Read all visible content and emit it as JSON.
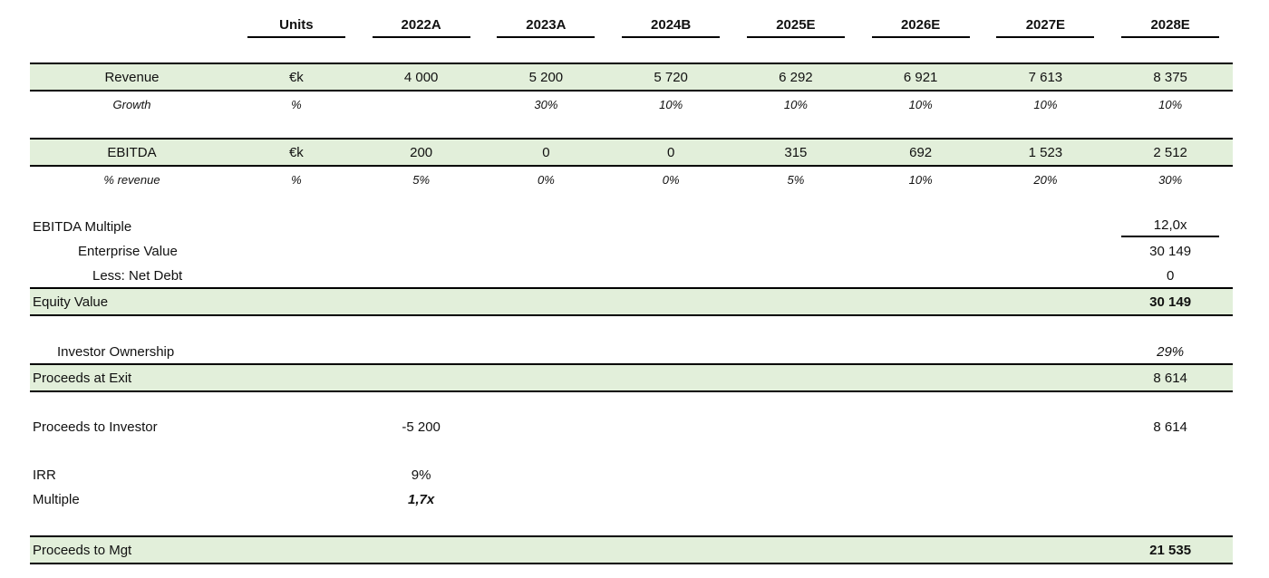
{
  "colors": {
    "band_green": "#e2efda",
    "border_black": "#000000",
    "text": "#111111"
  },
  "columns": {
    "units_header": "Units",
    "years": [
      "2022A",
      "2023A",
      "2024B",
      "2025E",
      "2026E",
      "2027E",
      "2028E"
    ]
  },
  "rows": {
    "revenue": {
      "label": "Revenue",
      "units": "€k",
      "values": [
        "4 000",
        "5 200",
        "5 720",
        "6 292",
        "6 921",
        "7 613",
        "8 375"
      ]
    },
    "growth": {
      "label": "Growth",
      "units": "%",
      "values": [
        "",
        "30%",
        "10%",
        "10%",
        "10%",
        "10%",
        "10%"
      ]
    },
    "ebitda": {
      "label": "EBITDA",
      "units": "€k",
      "values": [
        "200",
        "0",
        "0",
        "315",
        "692",
        "1 523",
        "2 512"
      ]
    },
    "ebitda_pct_revenue": {
      "label": "% revenue",
      "units": "%",
      "values": [
        "5%",
        "0%",
        "0%",
        "5%",
        "10%",
        "20%",
        "30%"
      ]
    },
    "ebitda_multiple": {
      "label": "EBITDA Multiple",
      "value_2028": "12,0x"
    },
    "enterprise_value": {
      "label": "Enterprise Value",
      "value_2028": "30 149"
    },
    "less_net_debt": {
      "label": "Less: Net Debt",
      "value_2028": "0"
    },
    "equity_value": {
      "label": "Equity Value",
      "value_2028": "30 149"
    },
    "investor_ownership": {
      "label": "Investor Ownership",
      "value_2028": "29%"
    },
    "proceeds_at_exit": {
      "label": "Proceeds at Exit",
      "value_2028": "8 614"
    },
    "proceeds_to_investor": {
      "label": "Proceeds to Investor",
      "value_2022": "-5 200",
      "value_2028": "8 614"
    },
    "irr": {
      "label": "IRR",
      "value_2022": "9%"
    },
    "multiple": {
      "label": "Multiple",
      "value_2022": "1,7x"
    },
    "proceeds_to_mgt": {
      "label": "Proceeds to Mgt",
      "value_2028": "21 535"
    }
  }
}
